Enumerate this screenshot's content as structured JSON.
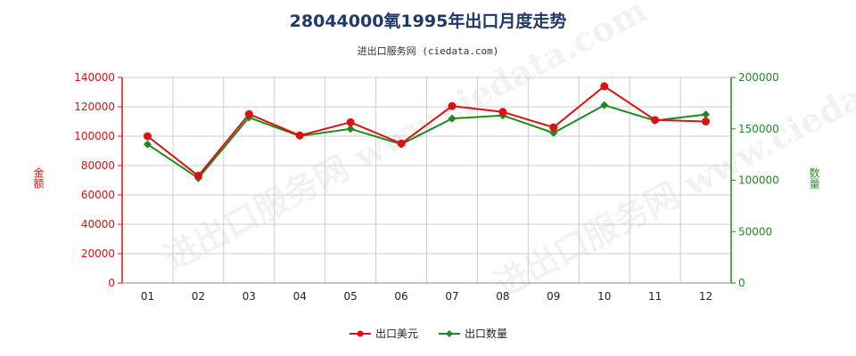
{
  "title": "28044000氧1995年出口月度走势",
  "subtitle": "进出口服务网 (ciedata.com)",
  "watermark_text": "进出口服务网 www.ciedata.com",
  "colors": {
    "value": "#e01010",
    "quantity": "#1e8a1e",
    "grid": "#cccccc"
  },
  "chart_data": {
    "type": "line",
    "categories": [
      "01",
      "02",
      "03",
      "04",
      "05",
      "06",
      "07",
      "08",
      "09",
      "10",
      "11",
      "12"
    ],
    "series": [
      {
        "name": "出口美元",
        "axis": "left",
        "values": [
          100000,
          73000,
          115000,
          100500,
          109500,
          95000,
          120500,
          116500,
          106000,
          134000,
          111000,
          110000
        ]
      },
      {
        "name": "出口数量",
        "axis": "right",
        "values": [
          135000,
          102000,
          161000,
          143000,
          150000,
          135000,
          160000,
          163000,
          146000,
          173000,
          158000,
          164000
        ]
      }
    ],
    "ylabel_left": "金额",
    "ylabel_right": "数量",
    "ylim_left": [
      0,
      140000
    ],
    "ylim_right": [
      0,
      200000
    ],
    "yticks_left": [
      "0",
      "20000",
      "40000",
      "60000",
      "80000",
      "100000",
      "120000",
      "140000"
    ],
    "yticks_right": [
      "0",
      "50000",
      "100000",
      "150000",
      "200000"
    ],
    "grid": true,
    "legend_position": "bottom"
  }
}
